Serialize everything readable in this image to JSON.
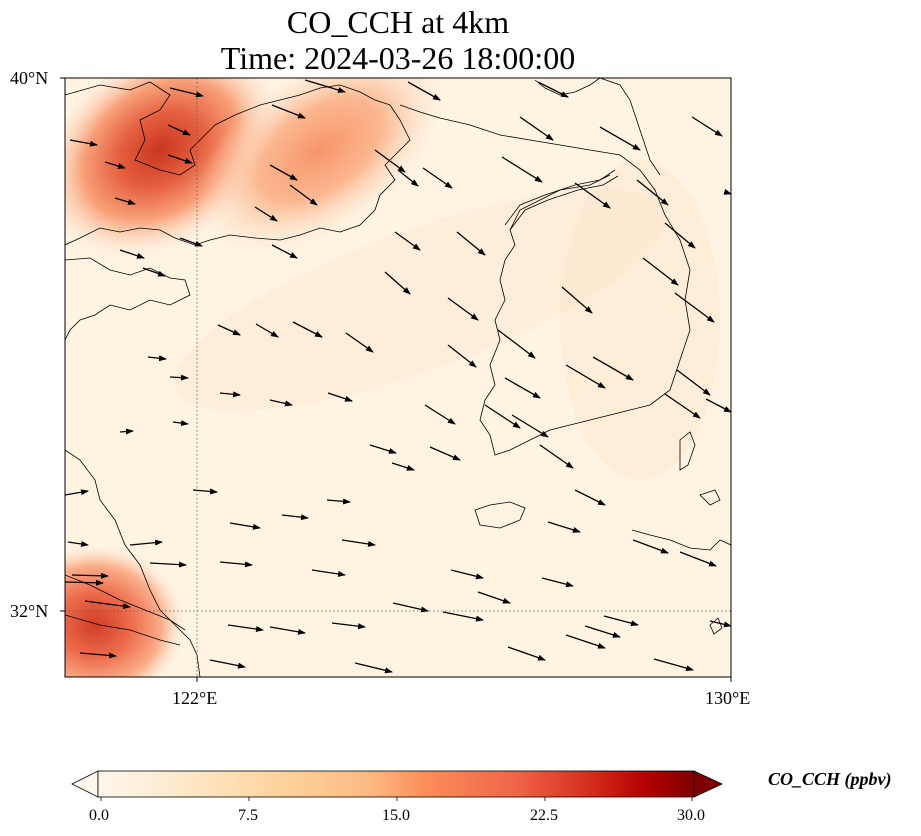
{
  "title": {
    "line1": "CO_CCH at 4km",
    "line2": "Time: 2024-03-26 18:00:00"
  },
  "map": {
    "lon_range": [
      120,
      130
    ],
    "lat_range": [
      31,
      40
    ],
    "gridlines": {
      "lon": [
        122
      ],
      "lat": [
        32
      ],
      "style": "dotted"
    },
    "lat_labels": [
      "40°N",
      "32°N"
    ],
    "lon_labels": [
      "122°E",
      "130°E"
    ],
    "field": "CO_CCH",
    "wind_vectors": true
  },
  "colorbar": {
    "label": "CO_CCH (ppbv)",
    "colormap": "OrRd",
    "ticks": [
      "0.0",
      "7.5",
      "15.0",
      "22.5",
      "30.0"
    ],
    "range": [
      0,
      30
    ],
    "extend": "both"
  }
}
